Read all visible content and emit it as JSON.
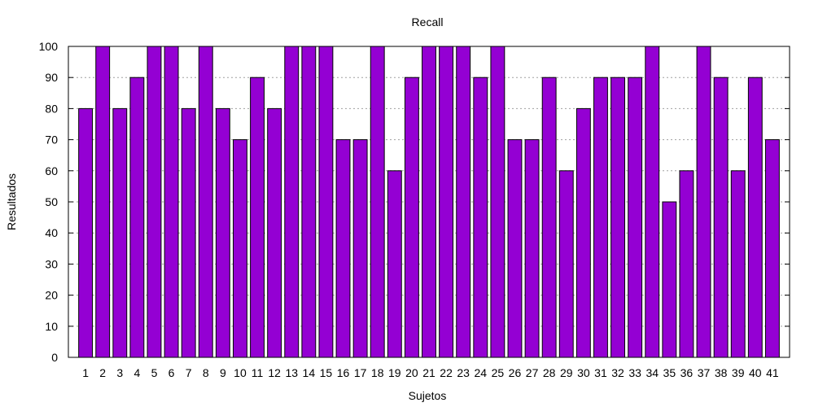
{
  "chart_data": {
    "type": "bar",
    "title": "Recall",
    "xlabel": "Sujetos",
    "ylabel": "Resultados",
    "ylim": [
      0,
      100
    ],
    "yticks": [
      0,
      10,
      20,
      30,
      40,
      50,
      60,
      70,
      80,
      90,
      100
    ],
    "grid": true,
    "bar_color": "#9400d3",
    "categories": [
      "1",
      "2",
      "3",
      "4",
      "5",
      "6",
      "7",
      "8",
      "9",
      "10",
      "11",
      "12",
      "13",
      "14",
      "15",
      "16",
      "17",
      "18",
      "19",
      "20",
      "21",
      "22",
      "23",
      "24",
      "25",
      "26",
      "27",
      "28",
      "29",
      "30",
      "31",
      "32",
      "33",
      "34",
      "35",
      "36",
      "37",
      "38",
      "39",
      "40",
      "41"
    ],
    "values": [
      80,
      100,
      80,
      90,
      100,
      100,
      80,
      100,
      80,
      70,
      90,
      80,
      100,
      100,
      100,
      70,
      70,
      100,
      60,
      90,
      100,
      100,
      100,
      90,
      100,
      70,
      70,
      90,
      60,
      80,
      90,
      90,
      90,
      100,
      50,
      60,
      100,
      90,
      60,
      90,
      70
    ]
  }
}
